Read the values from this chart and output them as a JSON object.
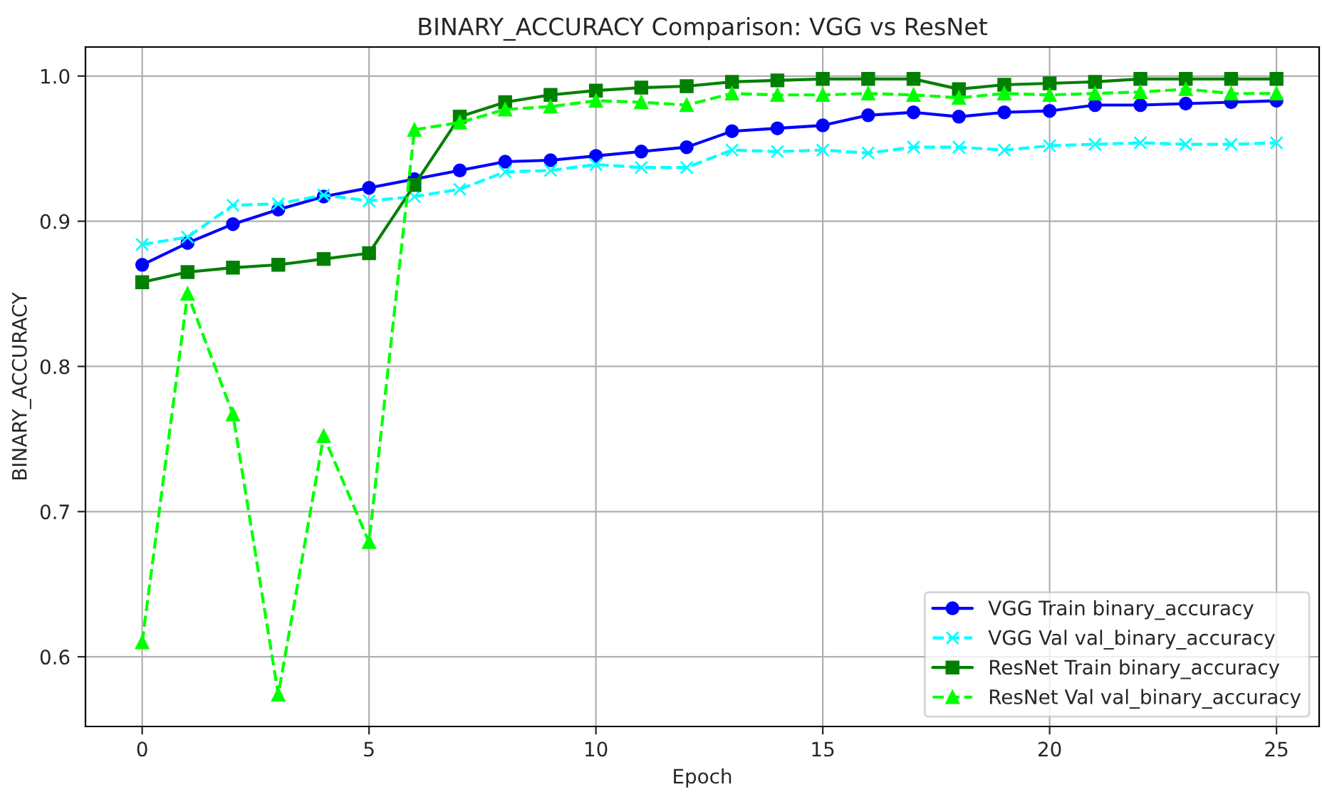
{
  "chart_data": {
    "type": "line",
    "title": "BINARY_ACCURACY Comparison: VGG vs ResNet",
    "xlabel": "Epoch",
    "ylabel": "BINARY_ACCURACY",
    "x": [
      0,
      1,
      2,
      3,
      4,
      5,
      6,
      7,
      8,
      9,
      10,
      11,
      12,
      13,
      14,
      15,
      16,
      17,
      18,
      19,
      20,
      21,
      22,
      23,
      24,
      25
    ],
    "series": [
      {
        "name": "VGG Train binary_accuracy",
        "color": "#0000ff",
        "marker": "circle",
        "line_style": "solid",
        "values": [
          0.87,
          0.885,
          0.898,
          0.908,
          0.917,
          0.923,
          0.929,
          0.935,
          0.941,
          0.942,
          0.945,
          0.948,
          0.951,
          0.962,
          0.964,
          0.966,
          0.973,
          0.975,
          0.972,
          0.975,
          0.976,
          0.98,
          0.98,
          0.981,
          0.982,
          0.983
        ]
      },
      {
        "name": "VGG Val val_binary_accuracy",
        "color": "#00ffff",
        "marker": "cross",
        "line_style": "dashed",
        "values": [
          0.884,
          0.889,
          0.911,
          0.912,
          0.918,
          0.914,
          0.917,
          0.922,
          0.934,
          0.935,
          0.939,
          0.937,
          0.937,
          0.949,
          0.948,
          0.949,
          0.947,
          0.951,
          0.951,
          0.949,
          0.952,
          0.953,
          0.954,
          0.953,
          0.953,
          0.954
        ]
      },
      {
        "name": "ResNet Train binary_accuracy",
        "color": "#008000",
        "marker": "square",
        "line_style": "solid",
        "values": [
          0.858,
          0.865,
          0.868,
          0.87,
          0.874,
          0.878,
          0.925,
          0.972,
          0.982,
          0.987,
          0.99,
          0.992,
          0.993,
          0.996,
          0.997,
          0.998,
          0.998,
          0.998,
          0.991,
          0.994,
          0.995,
          0.996,
          0.998,
          0.998,
          0.998,
          0.998
        ]
      },
      {
        "name": "ResNet Val val_binary_accuracy",
        "color": "#00ff00",
        "marker": "triangle",
        "line_style": "dashed",
        "values": [
          0.61,
          0.85,
          0.767,
          0.574,
          0.752,
          0.679,
          0.963,
          0.968,
          0.977,
          0.979,
          0.983,
          0.982,
          0.98,
          0.988,
          0.987,
          0.987,
          0.988,
          0.987,
          0.985,
          0.988,
          0.987,
          0.988,
          0.989,
          0.991,
          0.988,
          0.988
        ]
      }
    ],
    "xlim": [
      -1.25,
      25.94
    ],
    "xticks": [
      0,
      5,
      10,
      15,
      20,
      25
    ],
    "ylim": [
      0.552,
      1.02
    ],
    "yticks": [
      {
        "value": 0.6,
        "label": "0.6"
      },
      {
        "value": 0.7,
        "label": "0.7"
      },
      {
        "value": 0.8,
        "label": "0.8"
      },
      {
        "value": 0.9,
        "label": "0.9"
      },
      {
        "value": 1.0,
        "label": "1.0"
      }
    ],
    "grid": true,
    "legend": "bottom right"
  }
}
